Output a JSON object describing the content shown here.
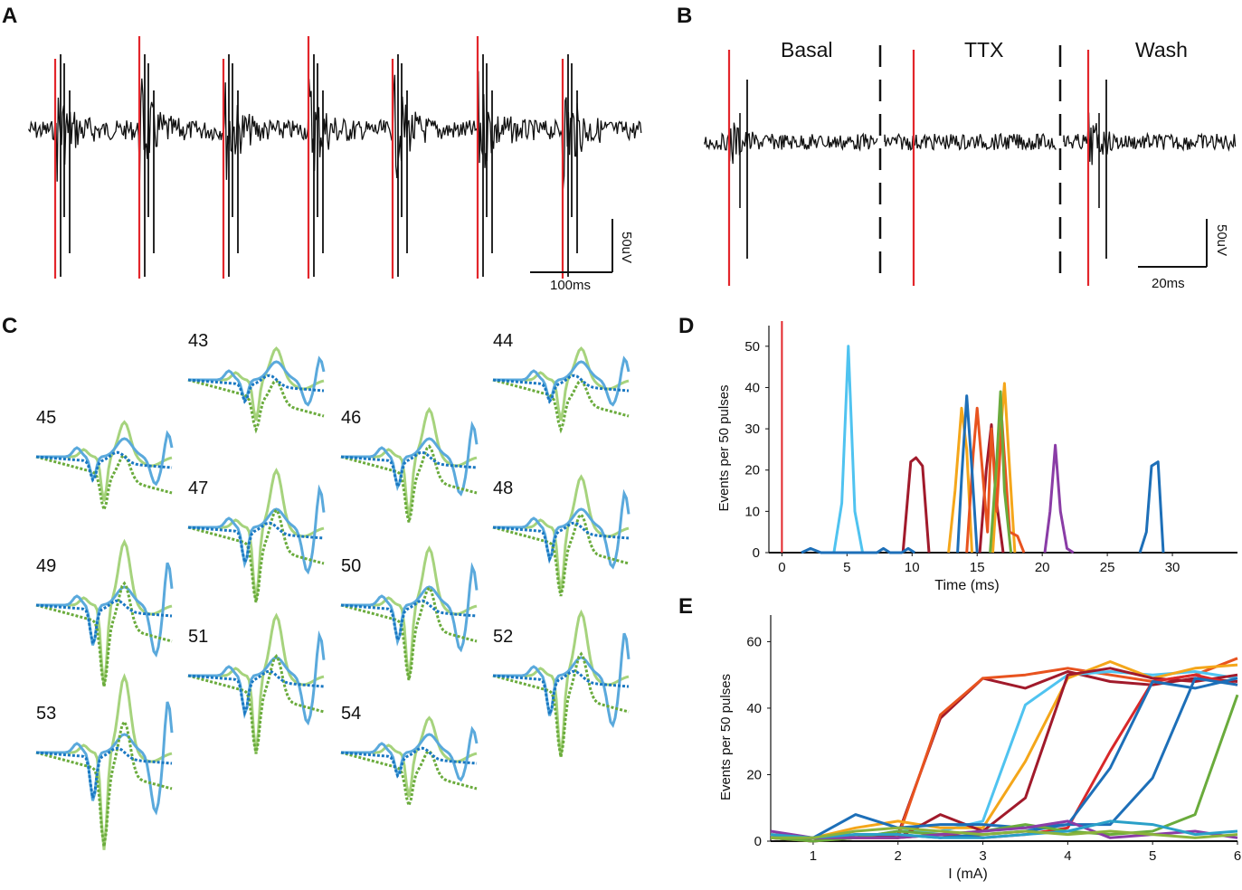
{
  "figure": {
    "panel_labels": {
      "a": "A",
      "b": "B",
      "c": "C",
      "d": "D",
      "e": "E"
    },
    "panel_a": {
      "scale_time": "100ms",
      "scale_voltage": "50uV"
    },
    "panel_b": {
      "conditions": [
        "Basal",
        "TTX",
        "Wash"
      ],
      "scale_time": "20ms",
      "scale_voltage": "50uV"
    },
    "panel_c": {
      "unit_ids": [
        "43",
        "44",
        "45",
        "46",
        "47",
        "48",
        "49",
        "50",
        "51",
        "52",
        "53",
        "54"
      ]
    },
    "colors": {
      "stim": "#e3262b",
      "trace": "#111111",
      "blue": "#1a78c2",
      "lightblue": "#5aa9dc",
      "green": "#6aab3c",
      "lightgreen": "#a6d37d"
    }
  },
  "chart_data": [
    {
      "type": "line",
      "title": "D",
      "xlabel": "Time (ms)",
      "ylabel": "Events per 50 pulses",
      "xlim": [
        -1,
        35
      ],
      "ylim": [
        0,
        55
      ],
      "xticks": [
        0,
        5,
        10,
        15,
        20,
        25,
        30
      ],
      "yticks": [
        0,
        10,
        20,
        30,
        40,
        50
      ],
      "stimulus_x": 0,
      "series": [
        {
          "name": "light-blue",
          "color": "#4fc3f0",
          "x": [
            4,
            4.6,
            5.1,
            5.6,
            6.2
          ],
          "y": [
            0,
            12,
            50,
            10,
            0
          ]
        },
        {
          "name": "dark-red-1",
          "color": "#a11a2b",
          "x": [
            9.3,
            9.9,
            10.3,
            10.8,
            11.3
          ],
          "y": [
            0,
            22,
            23,
            21,
            0
          ]
        },
        {
          "name": "dark-red-2",
          "color": "#a11a2b",
          "x": [
            15.2,
            15.7,
            16.1,
            16.5,
            17
          ],
          "y": [
            0,
            20,
            31,
            12,
            0
          ]
        },
        {
          "name": "orange-1",
          "color": "#f4a61a",
          "x": [
            12.8,
            13.3,
            13.8,
            14.2,
            14.6
          ],
          "y": [
            0,
            15,
            35,
            25,
            0
          ]
        },
        {
          "name": "orange-2",
          "color": "#f4a61a",
          "x": [
            16.2,
            16.7,
            17.1,
            17.5,
            17.9
          ],
          "y": [
            0,
            25,
            41,
            20,
            0
          ]
        },
        {
          "name": "red-orange",
          "color": "#e8531f",
          "x": [
            14.2,
            14.7,
            15,
            15.4,
            15.8,
            16.1,
            16.5,
            16.9,
            17.5,
            18.1,
            18.6
          ],
          "y": [
            0,
            24,
            35,
            20,
            5,
            30,
            10,
            32,
            5,
            4,
            0
          ]
        },
        {
          "name": "blue-1",
          "color": "#1d6fb8",
          "x": [
            13.5,
            13.8,
            14.2,
            14.6,
            15
          ],
          "y": [
            0,
            18,
            38,
            20,
            0
          ]
        },
        {
          "name": "green",
          "color": "#6aab3c",
          "x": [
            16,
            16.5,
            16.8,
            17.1,
            17.6
          ],
          "y": [
            0,
            22,
            39,
            15,
            0
          ]
        },
        {
          "name": "purple",
          "color": "#8a3ca6",
          "x": [
            20.2,
            20.6,
            21,
            21.4,
            21.9,
            22.4
          ],
          "y": [
            0,
            10,
            26,
            10,
            1,
            0
          ]
        },
        {
          "name": "blue-2",
          "color": "#1d6fb8",
          "x": [
            27.5,
            28,
            28.4,
            28.9,
            29.3
          ],
          "y": [
            0,
            5,
            21,
            22,
            0
          ]
        },
        {
          "name": "baseline-bumps",
          "color": "#1d6fb8",
          "x": [
            1.5,
            2.2,
            3,
            7.3,
            7.8,
            8.3,
            9.2,
            9.7,
            10.2
          ],
          "y": [
            0,
            1,
            0,
            0,
            1,
            0,
            0,
            1,
            0
          ]
        }
      ]
    },
    {
      "type": "line",
      "title": "E",
      "xlabel": "I (mA)",
      "ylabel": "Events per 50 pulses",
      "xlim": [
        0.5,
        6
      ],
      "ylim": [
        0,
        68
      ],
      "xticks": [
        1,
        2,
        3,
        4,
        5,
        6
      ],
      "yticks": [
        0,
        20,
        40,
        60
      ],
      "series": [
        {
          "name": "dark-red",
          "color": "#a11a2b",
          "x": [
            0.5,
            1,
            1.5,
            2,
            2.5,
            3,
            3.5,
            4,
            4.5,
            5,
            5.5,
            6
          ],
          "y": [
            1,
            0,
            1,
            2,
            37,
            49,
            46,
            51,
            48,
            47,
            49,
            48
          ]
        },
        {
          "name": "red-orange",
          "color": "#e8531f",
          "x": [
            0.5,
            1,
            1.5,
            2,
            2.5,
            3,
            3.5,
            4,
            4.5,
            5,
            5.5,
            6
          ],
          "y": [
            1,
            1,
            1,
            1,
            38,
            49,
            50,
            52,
            50,
            48,
            50,
            55
          ]
        },
        {
          "name": "light-blue",
          "color": "#4fc3f0",
          "x": [
            0.5,
            1,
            1.5,
            2,
            2.5,
            3,
            3.5,
            4,
            4.5,
            5,
            5.5,
            6
          ],
          "y": [
            2,
            1,
            1,
            3,
            3,
            6,
            41,
            50,
            51,
            50,
            51,
            49
          ]
        },
        {
          "name": "orange",
          "color": "#f4a61a",
          "x": [
            0.5,
            1,
            1.5,
            2,
            2.5,
            3,
            3.5,
            4,
            4.5,
            5,
            5.5,
            6
          ],
          "y": [
            2,
            1,
            4,
            6,
            4,
            4,
            24,
            49,
            54,
            49,
            52,
            53
          ]
        },
        {
          "name": "dark-red-2",
          "color": "#a11a2b",
          "x": [
            0.5,
            1,
            1.5,
            2,
            2.5,
            3,
            3.5,
            4,
            4.5,
            5,
            5.5,
            6
          ],
          "y": [
            1,
            0,
            2,
            1,
            8,
            3,
            13,
            50,
            52,
            49,
            48,
            50
          ]
        },
        {
          "name": "red",
          "color": "#d8282a",
          "x": [
            0.5,
            1,
            1.5,
            2,
            2.5,
            3,
            3.5,
            4,
            4.5,
            5,
            5.5,
            6
          ],
          "y": [
            1,
            1,
            1,
            1,
            2,
            1,
            2,
            4,
            27,
            48,
            50,
            47
          ]
        },
        {
          "name": "blue-1",
          "color": "#1d6fb8",
          "x": [
            0.5,
            1,
            1.5,
            2,
            2.5,
            3,
            3.5,
            4,
            4.5,
            5,
            5.5,
            6
          ],
          "y": [
            1,
            1,
            8,
            4,
            5,
            5,
            4,
            5,
            22,
            48,
            46,
            49
          ]
        },
        {
          "name": "blue-2",
          "color": "#1d6fb8",
          "x": [
            0.5,
            1,
            1.5,
            2,
            2.5,
            3,
            3.5,
            4,
            4.5,
            5,
            5.5,
            6
          ],
          "y": [
            1,
            1,
            2,
            2,
            1,
            2,
            3,
            5,
            5,
            19,
            49,
            47
          ]
        },
        {
          "name": "green",
          "color": "#6aab3c",
          "x": [
            0.5,
            1,
            1.5,
            2,
            2.5,
            3,
            3.5,
            4,
            4.5,
            5,
            5.5,
            6
          ],
          "y": [
            1,
            0,
            1,
            3,
            2,
            3,
            5,
            3,
            2,
            3,
            8,
            44
          ]
        },
        {
          "name": "purple",
          "color": "#8a3ca6",
          "x": [
            0.5,
            1,
            1.5,
            2,
            2.5,
            3,
            3.5,
            4,
            4.5,
            5,
            5.5,
            6
          ],
          "y": [
            3,
            1,
            1,
            1,
            2,
            3,
            4,
            6,
            1,
            2,
            3,
            1
          ]
        },
        {
          "name": "teal",
          "color": "#2aa0c8",
          "x": [
            0.5,
            1,
            1.5,
            2,
            2.5,
            3,
            3.5,
            4,
            4.5,
            5,
            5.5,
            6
          ],
          "y": [
            2,
            1,
            2,
            2,
            1,
            1,
            2,
            3,
            6,
            5,
            2,
            3
          ]
        },
        {
          "name": "olive",
          "color": "#8ab33c",
          "x": [
            0.5,
            1,
            1.5,
            2,
            2.5,
            3,
            3.5,
            4,
            4.5,
            5,
            5.5,
            6
          ],
          "y": [
            1,
            1,
            3,
            4,
            3,
            2,
            3,
            2,
            3,
            2,
            1,
            2
          ]
        }
      ]
    }
  ]
}
